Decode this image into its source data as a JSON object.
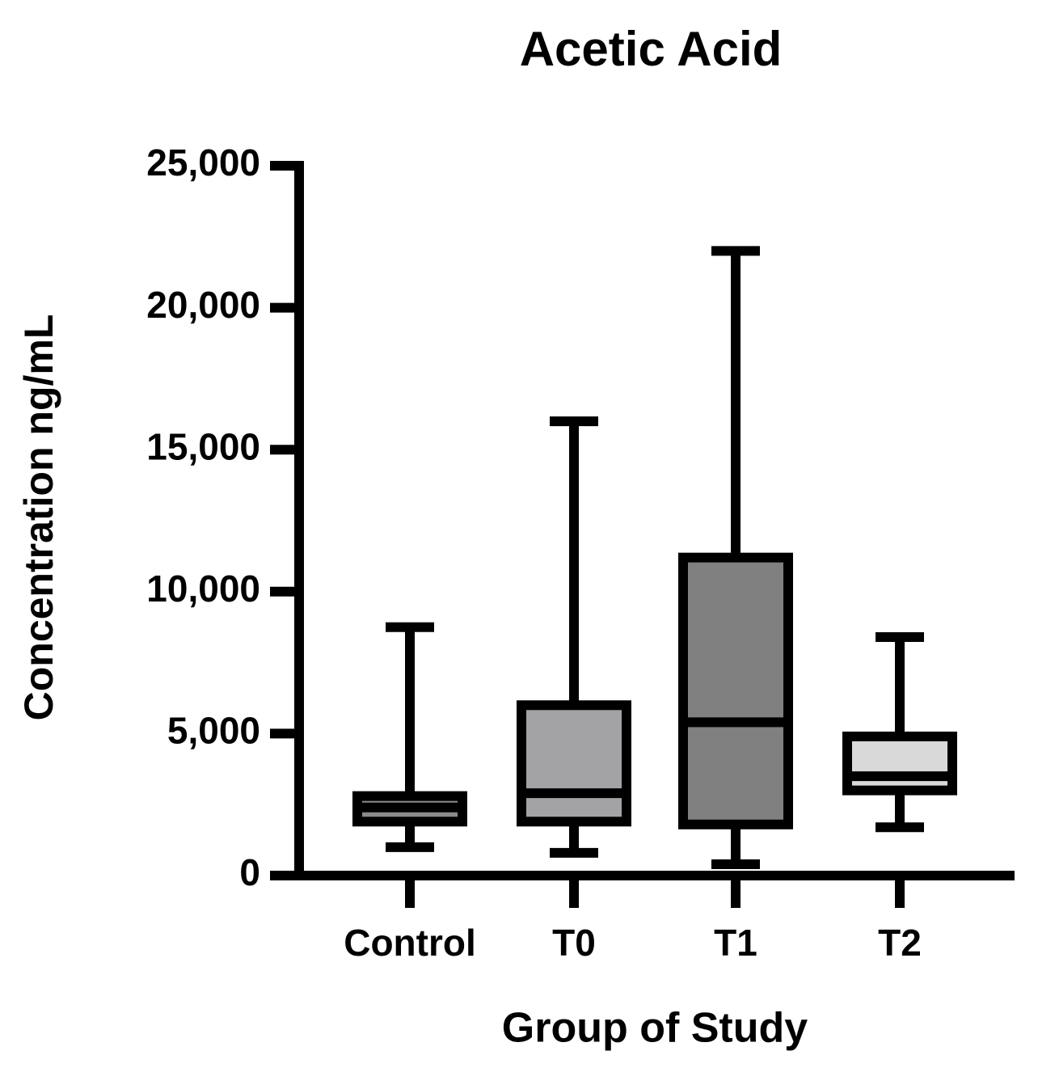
{
  "chart_data": {
    "type": "box",
    "title": "Acetic  Acid",
    "x_label": "Group of  Study",
    "y_label": "Concentration ng/mL",
    "categories": [
      "Control",
      "T0",
      "T1",
      "T2"
    ],
    "boxes": [
      {
        "min": 1000,
        "q1": 1900,
        "median": 2400,
        "q3": 2800,
        "max": 8750,
        "color": "#8a8a8a"
      },
      {
        "min": 800,
        "q1": 1900,
        "median": 2900,
        "q3": 6000,
        "max": 16000,
        "color": "#a3a3a6"
      },
      {
        "min": 400,
        "q1": 1800,
        "median": 5400,
        "q3": 11200,
        "max": 22000,
        "color": "#808080"
      },
      {
        "min": 1700,
        "q1": 3000,
        "median": 3500,
        "q3": 4900,
        "max": 8400,
        "color": "#d9d9d9"
      }
    ],
    "ylim": [
      0,
      25000
    ],
    "yticks": [
      0,
      {
        "value": 5000,
        "label": "5,000"
      },
      {
        "value": 10000,
        "label": "10,000"
      },
      {
        "value": 15000,
        "label": "15,000"
      },
      {
        "value": 20000,
        "label": "20,000"
      },
      {
        "value": 25000,
        "label": "25,000"
      }
    ]
  }
}
